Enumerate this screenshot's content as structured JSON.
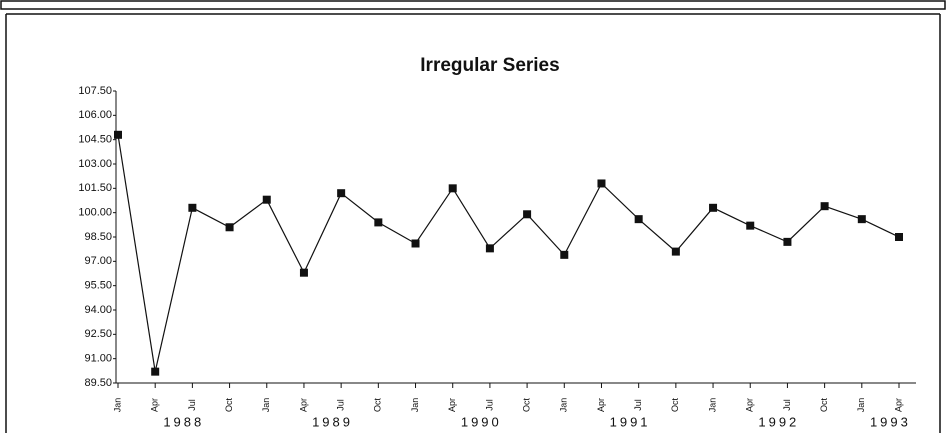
{
  "chart_data": {
    "type": "line",
    "title": "Irregular Series",
    "categories": [
      "Jan",
      "Apr",
      "Jul",
      "Oct",
      "Jan",
      "Apr",
      "Jul",
      "Oct",
      "Jan",
      "Apr",
      "Jul",
      "Oct",
      "Jan",
      "Apr",
      "Jul",
      "Oct",
      "Jan",
      "Apr",
      "Jul",
      "Oct",
      "Jan",
      "Apr"
    ],
    "year_labels": [
      "1988",
      "1989",
      "1990",
      "1991",
      "1992",
      "1993"
    ],
    "series": [
      {
        "name": "Irregular",
        "color": "#111111",
        "values": [
          104.8,
          90.2,
          100.3,
          99.1,
          100.8,
          96.3,
          101.2,
          99.4,
          98.1,
          101.5,
          97.8,
          99.9,
          97.4,
          101.8,
          99.6,
          97.6,
          100.3,
          99.2,
          98.2,
          100.4,
          99.6,
          98.5
        ]
      }
    ],
    "ylim": [
      89.5,
      107.5
    ],
    "yticks": [
      {
        "value": 89.5,
        "label": "89.50"
      },
      {
        "value": 91,
        "label": "91.00"
      },
      {
        "value": 92.5,
        "label": "92.50"
      },
      {
        "value": 94,
        "label": "94.00"
      },
      {
        "value": 95.5,
        "label": "95.50"
      },
      {
        "value": 97,
        "label": "97.00"
      },
      {
        "value": 98.5,
        "label": "98.50"
      },
      {
        "value": 100,
        "label": "100.00"
      },
      {
        "value": 101.5,
        "label": "101.50"
      },
      {
        "value": 103,
        "label": "103.00"
      },
      {
        "value": 104.5,
        "label": "104.50"
      },
      {
        "value": 106,
        "label": "106.00"
      },
      {
        "value": 107.5,
        "label": "107.50"
      }
    ]
  }
}
